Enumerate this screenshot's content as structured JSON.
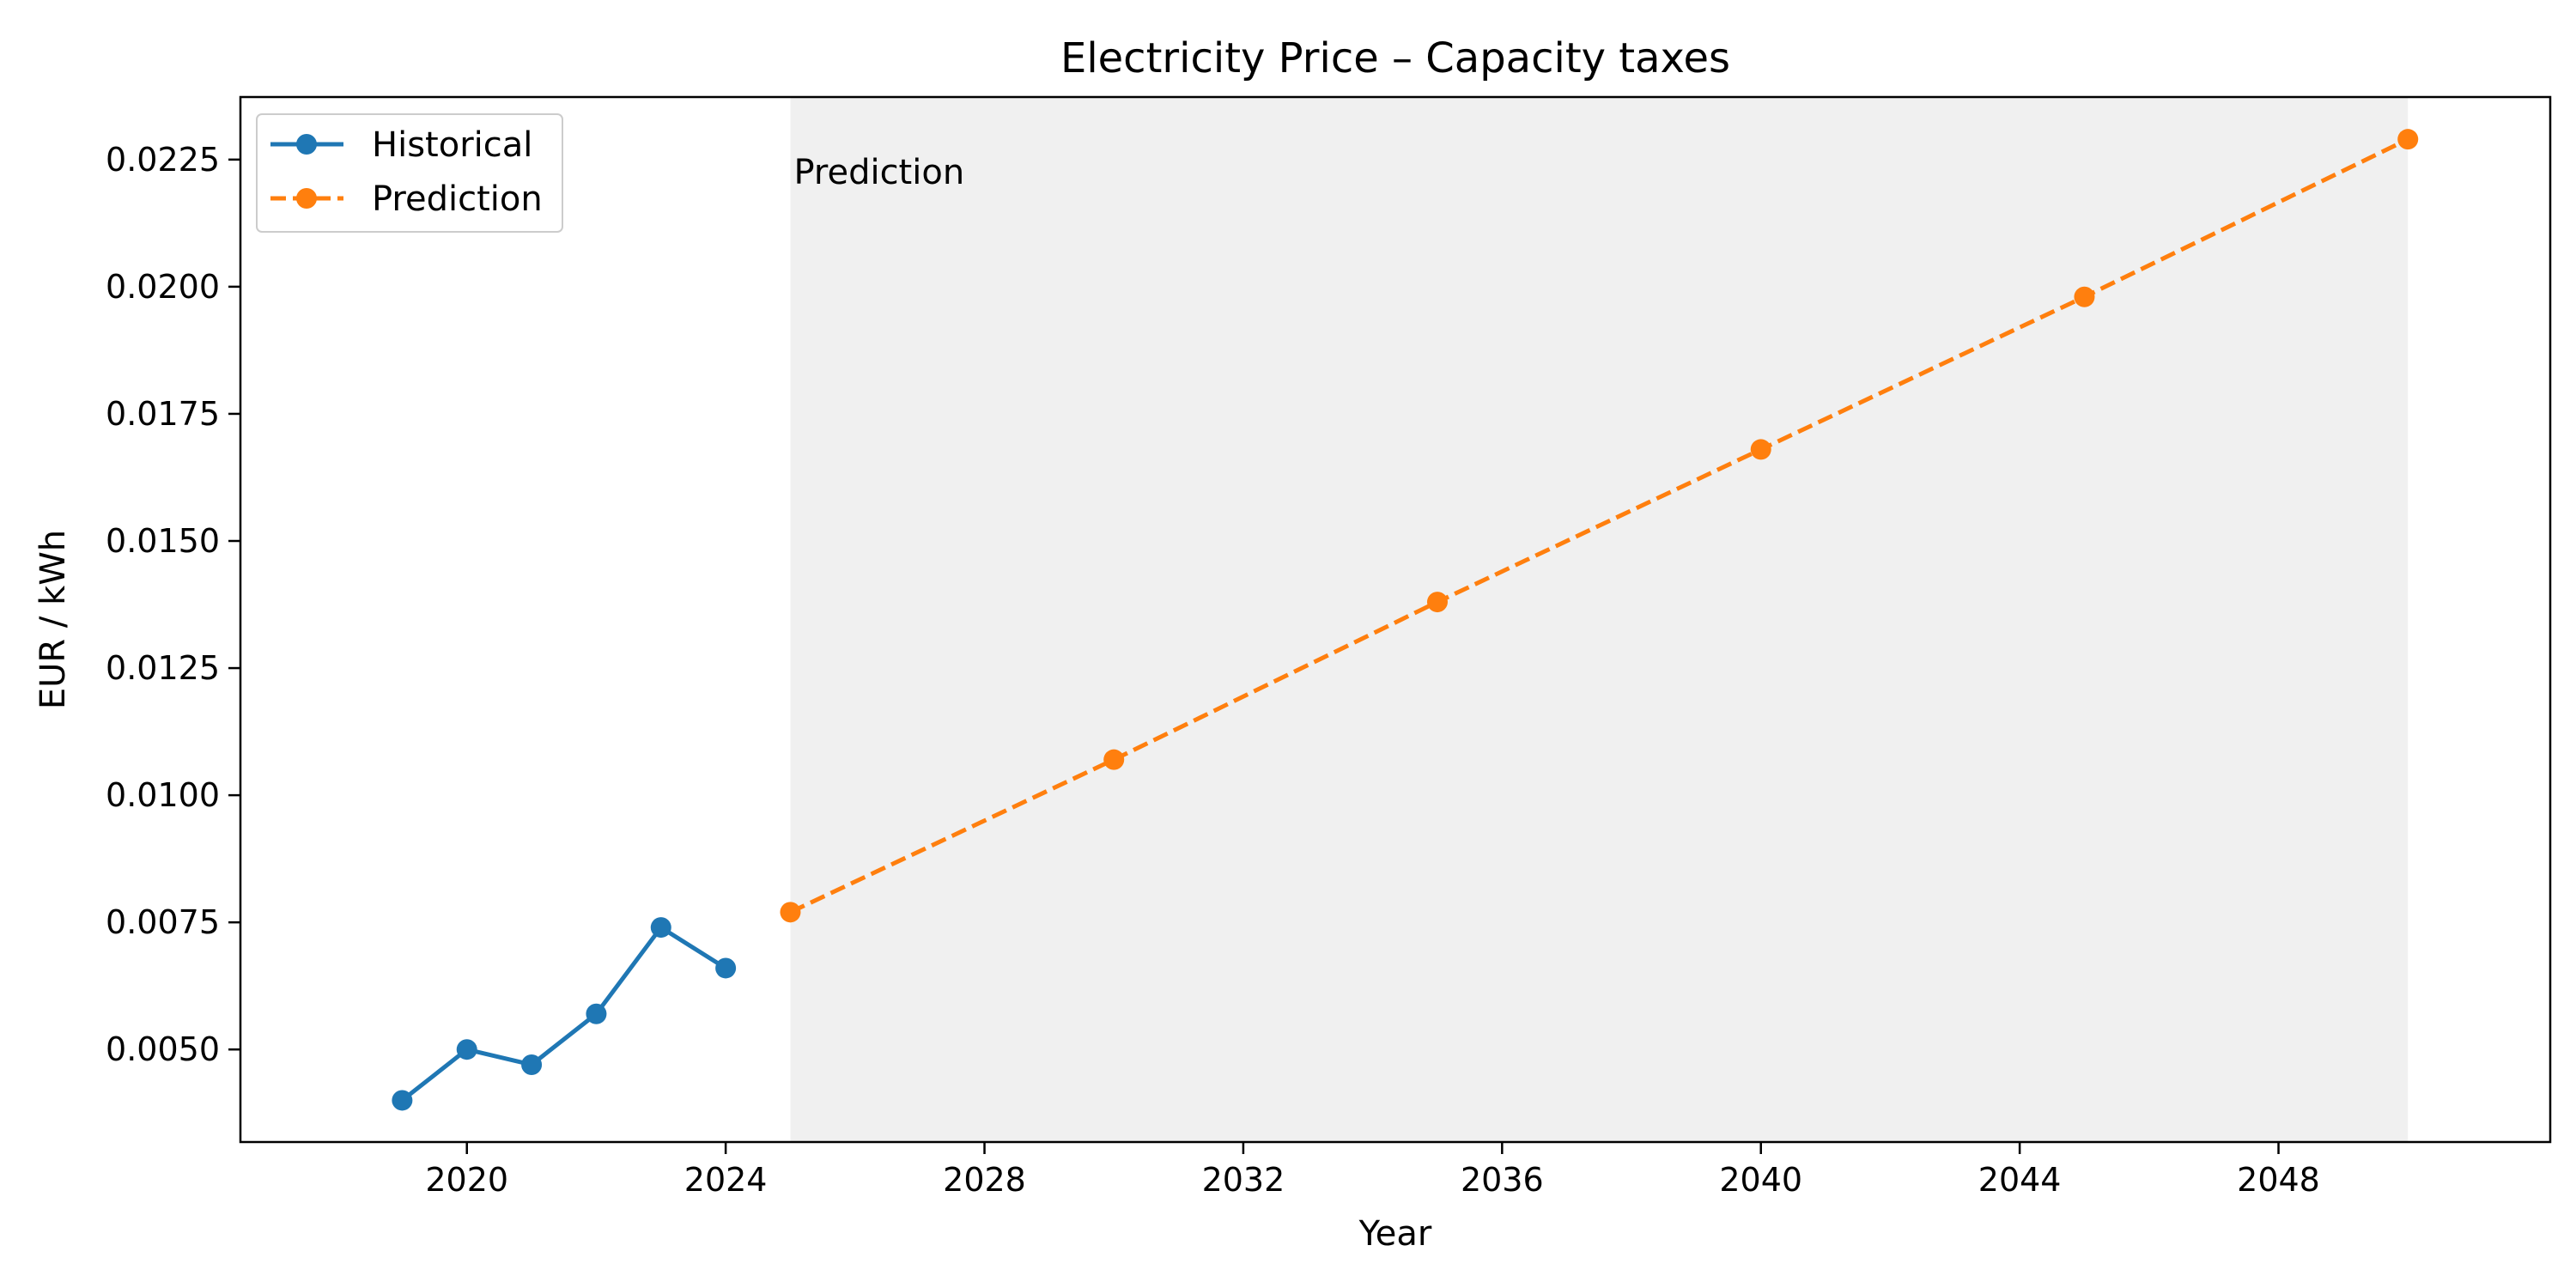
{
  "chart_data": {
    "type": "line",
    "title": "Electricity Price – Capacity taxes",
    "xlabel": "Year",
    "ylabel": "EUR / kWh",
    "xlim": [
      2016.5,
      2052.2
    ],
    "ylim": [
      0.00318,
      0.02373
    ],
    "x_ticks": [
      2020,
      2024,
      2028,
      2032,
      2036,
      2040,
      2044,
      2048
    ],
    "x_tick_labels": [
      "2020",
      "2024",
      "2028",
      "2032",
      "2036",
      "2040",
      "2044",
      "2048"
    ],
    "y_ticks": [
      0.005,
      0.0075,
      0.01,
      0.0125,
      0.015,
      0.0175,
      0.02,
      0.0225
    ],
    "y_tick_labels": [
      "0.0050",
      "0.0075",
      "0.0100",
      "0.0125",
      "0.0150",
      "0.0175",
      "0.0200",
      "0.0225"
    ],
    "grid": false,
    "legend_position": "top-left",
    "shaded_region": {
      "x": [
        2025,
        2050
      ],
      "color": "#f0f0f0",
      "label": "Prediction"
    },
    "series": [
      {
        "name": "Historical",
        "color": "#1f77b4",
        "line_style": "solid",
        "marker": "circle",
        "x": [
          2019,
          2020,
          2021,
          2022,
          2023,
          2024
        ],
        "y": [
          0.004,
          0.005,
          0.0047,
          0.0057,
          0.0074,
          0.0066
        ]
      },
      {
        "name": "Prediction",
        "color": "#ff7f0e",
        "line_style": "dashed",
        "marker": "circle",
        "x": [
          2025,
          2030,
          2035,
          2040,
          2045,
          2050
        ],
        "y": [
          0.0077,
          0.0107,
          0.0138,
          0.0168,
          0.0198,
          0.0229
        ]
      }
    ]
  }
}
